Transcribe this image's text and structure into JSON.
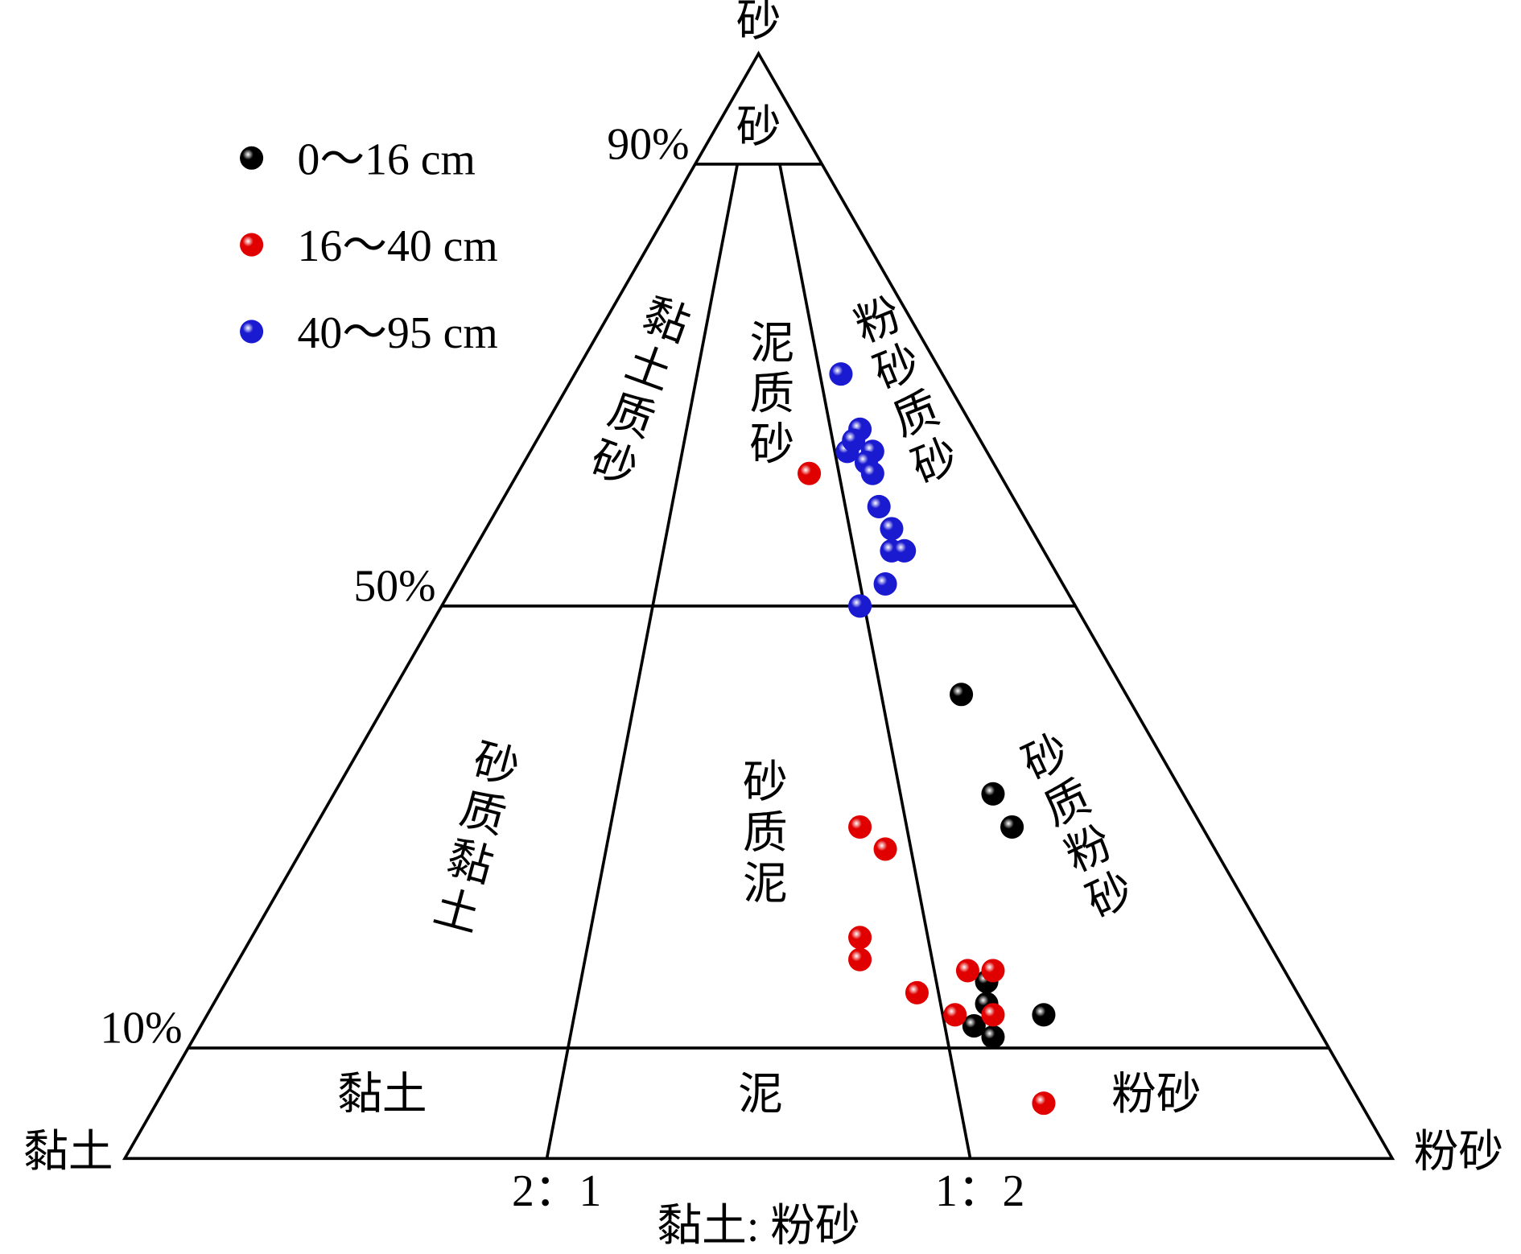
{
  "chart_data": {
    "type": "ternary",
    "vertex_labels": {
      "top": "砂",
      "left": "黏土",
      "right": "粉砂"
    },
    "base_label": "黏土: 粉砂",
    "sand_ticks": [
      {
        "value": 90,
        "label": "90%"
      },
      {
        "value": 50,
        "label": "50%"
      },
      {
        "value": 10,
        "label": "10%"
      }
    ],
    "ratio_ticks": [
      {
        "value": 66.7,
        "label": "2：1"
      },
      {
        "value": 33.3,
        "label": "1：2"
      }
    ],
    "regions": [
      "砂",
      "黏土质砂",
      "泥质砂",
      "粉砂质砂",
      "砂质黏土",
      "砂质泥",
      "砂质粉砂",
      "黏土",
      "泥",
      "粉砂"
    ],
    "series": [
      {
        "name": "0～16 cm",
        "color": "#000000",
        "sand": [
          42,
          33,
          30,
          16,
          14,
          12,
          11,
          13
        ],
        "silt": [
          45,
          52,
          55,
          60,
          61,
          61,
          63,
          66
        ],
        "clay": [
          13,
          15,
          15,
          24,
          25,
          27,
          26,
          21
        ]
      },
      {
        "name": "16～40 cm",
        "color": "#e00000",
        "sand": [
          62,
          30,
          28,
          20,
          18,
          15,
          17,
          17,
          13,
          13,
          5
        ],
        "silt": [
          23,
          43,
          46,
          48,
          49,
          55,
          58,
          60,
          59,
          62,
          70
        ],
        "clay": [
          15,
          27,
          26,
          32,
          33,
          30,
          25,
          23,
          28,
          25,
          25
        ]
      },
      {
        "name": "40～95 cm",
        "color": "#1a1ad0",
        "sand": [
          71,
          66,
          64,
          65,
          64,
          63,
          62,
          59,
          57,
          55,
          55,
          52,
          50
        ],
        "silt": [
          21,
          25,
          25,
          25,
          27,
          27,
          28,
          30,
          32,
          33,
          34,
          34,
          33
        ],
        "clay": [
          8,
          9,
          11,
          10,
          9,
          10,
          10,
          11,
          11,
          12,
          11,
          14,
          17
        ]
      }
    ]
  }
}
